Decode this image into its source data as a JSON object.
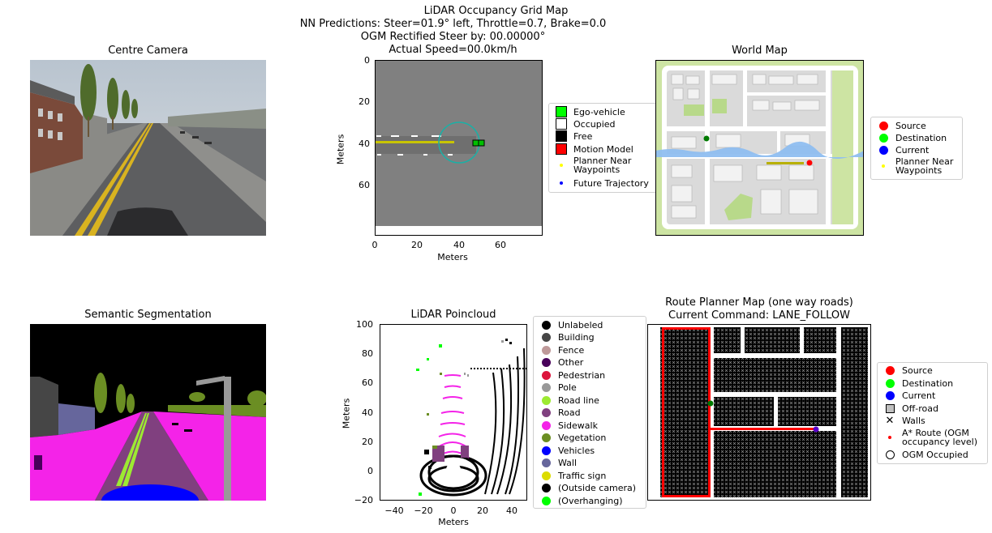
{
  "header": {
    "line1": "LiDAR Occupancy Grid Map",
    "line2": "NN Predictions: Steer=01.9° left, Throttle=0.7, Brake=0.0",
    "line3": "OGM Rectified Steer by: 00.00000°",
    "line4": "Actual Speed=00.0km/h"
  },
  "camera": {
    "title": "Centre Camera"
  },
  "ogm": {
    "xlabel": "Meters",
    "ylabel": "Meters",
    "xticks": [
      "0",
      "20",
      "40",
      "60"
    ],
    "yticks": [
      "0",
      "20",
      "40",
      "60"
    ],
    "legend": [
      {
        "label": "Ego-vehicle",
        "color": "#00ff00",
        "icon": "square"
      },
      {
        "label": "Occupied",
        "color": "#ffffff",
        "icon": "square"
      },
      {
        "label": "Free",
        "color": "#000000",
        "icon": "square"
      },
      {
        "label": "Motion Model",
        "color": "#ff0000",
        "icon": "square"
      },
      {
        "label": "Planner Near\nWaypoints",
        "color": "#ffff00",
        "icon": "small-dot"
      },
      {
        "label": "Future Trajectory",
        "color": "#0000ff",
        "icon": "small-dot"
      }
    ]
  },
  "world_map": {
    "title": "World Map",
    "legend": [
      {
        "label": "Source",
        "color": "#ff0000",
        "icon": "dot"
      },
      {
        "label": "Destination",
        "color": "#00ff00",
        "icon": "dot"
      },
      {
        "label": "Current",
        "color": "#0000ff",
        "icon": "dot"
      },
      {
        "label": "Planner Near\nWaypoints",
        "color": "#ffff00",
        "icon": "small-dot"
      }
    ]
  },
  "segmentation": {
    "title": "Semantic Segmentation"
  },
  "lidar": {
    "title": "LiDAR Poincloud",
    "xlabel": "Meters",
    "ylabel": "Meters",
    "xticks": [
      "−40",
      "−20",
      "0",
      "20",
      "40"
    ],
    "yticks": [
      "100",
      "80",
      "60",
      "40",
      "20",
      "0",
      "−20"
    ],
    "legend": [
      {
        "label": "Unlabeled",
        "color": "#000000"
      },
      {
        "label": "Building",
        "color": "#464646"
      },
      {
        "label": "Fence",
        "color": "#be9999"
      },
      {
        "label": "Other",
        "color": "#48005a"
      },
      {
        "label": "Pedestrian",
        "color": "#dc143c"
      },
      {
        "label": "Pole",
        "color": "#999999"
      },
      {
        "label": "Road line",
        "color": "#9dea32"
      },
      {
        "label": "Road",
        "color": "#80407f"
      },
      {
        "label": "Sidewalk",
        "color": "#f423e8"
      },
      {
        "label": "Vegetation",
        "color": "#6b8e23"
      },
      {
        "label": "Vehicles",
        "color": "#0000ff"
      },
      {
        "label": "Wall",
        "color": "#66669c"
      },
      {
        "label": "Traffic sign",
        "color": "#dcdc00"
      },
      {
        "label": "(Outside camera)",
        "color": "#000000"
      },
      {
        "label": "(Overhanging)",
        "color": "#00ff00"
      }
    ]
  },
  "route_planner": {
    "title1": "Route Planner Map (one way roads)",
    "title2": "Current Command: LANE_FOLLOW",
    "legend": [
      {
        "label": "Source",
        "color": "#ff0000",
        "icon": "dot"
      },
      {
        "label": "Destination",
        "color": "#00ff00",
        "icon": "dot"
      },
      {
        "label": "Current",
        "color": "#0000ff",
        "icon": "dot"
      },
      {
        "label": "Off-road",
        "color": "#c0c0c0",
        "icon": "square"
      },
      {
        "label": "Walls",
        "color": "#000000",
        "icon": "x"
      },
      {
        "label": "A* Route (OGM\noccupancy level)",
        "color": "#ff0000",
        "icon": "small-dot"
      },
      {
        "label": "OGM Occupied",
        "color": "#ffffff",
        "icon": "circle"
      }
    ]
  }
}
